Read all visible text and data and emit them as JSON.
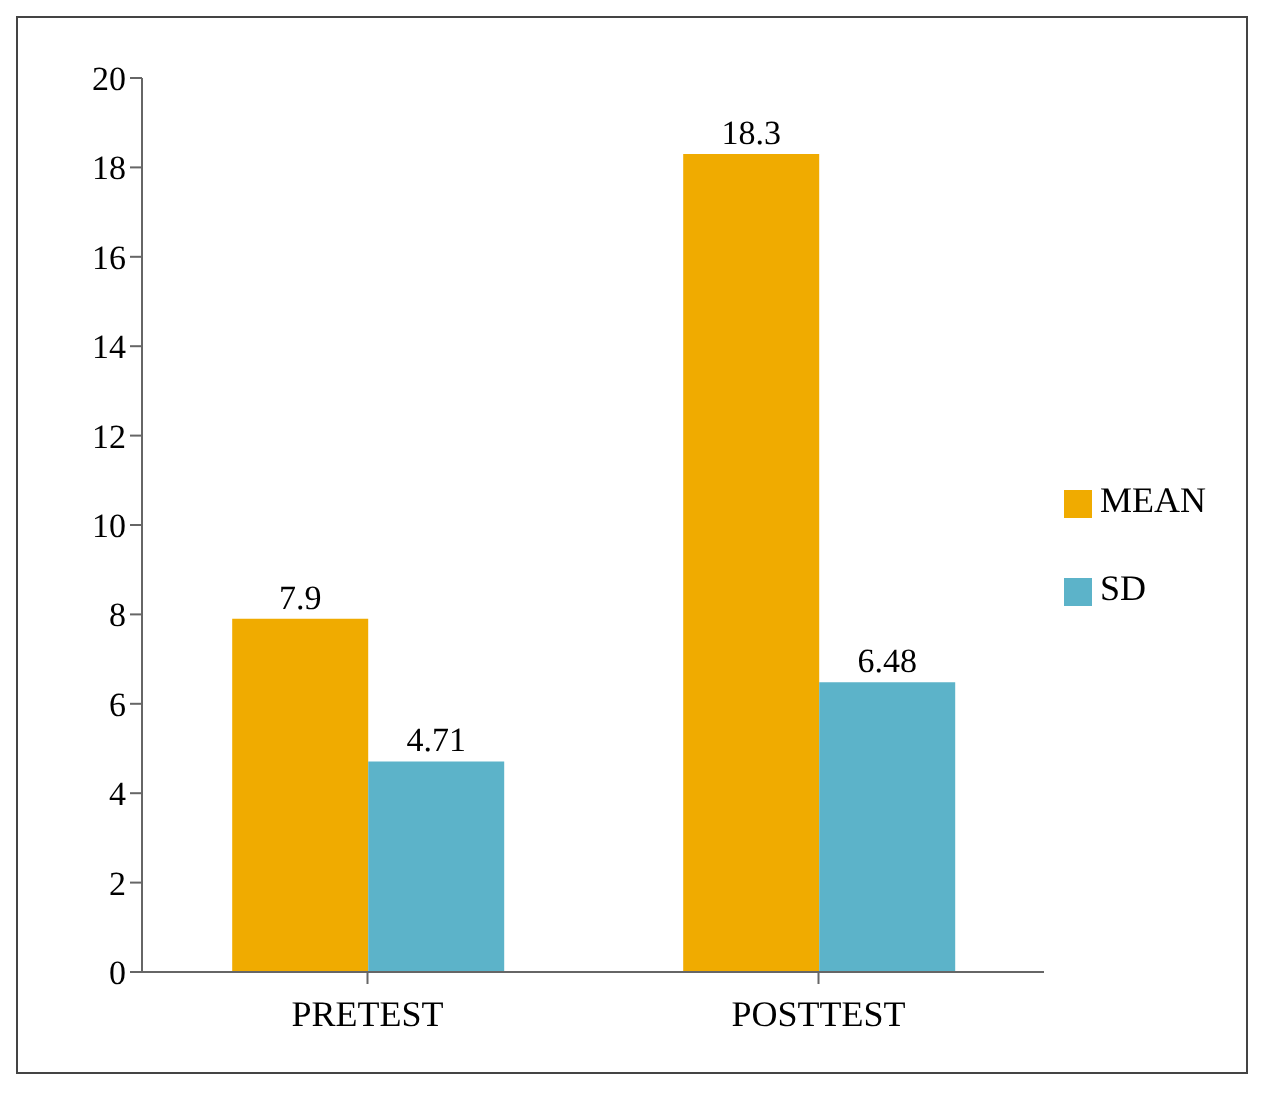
{
  "chart_data": {
    "type": "bar",
    "categories": [
      "PRETEST",
      "POSTTEST"
    ],
    "series": [
      {
        "name": "MEAN",
        "color": "#f0ab00",
        "values": [
          7.9,
          18.3
        ]
      },
      {
        "name": "SD",
        "color": "#5cb3c9",
        "values": [
          4.71,
          6.48
        ]
      }
    ],
    "ylim": [
      0,
      20
    ],
    "yticks": [
      0,
      2,
      4,
      6,
      8,
      10,
      12,
      14,
      16,
      18,
      20
    ],
    "grid": false,
    "legend": "right",
    "data_labels": true
  }
}
